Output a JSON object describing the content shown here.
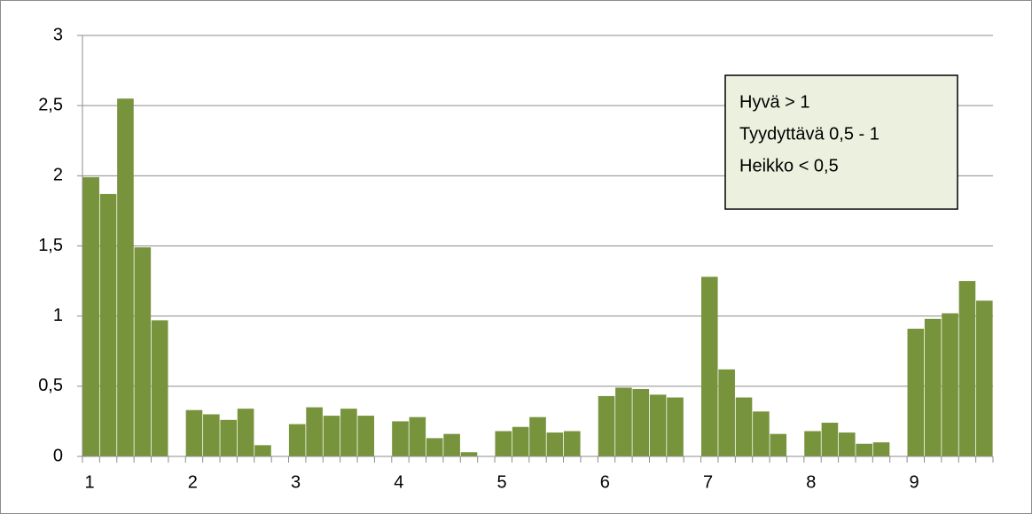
{
  "chart_data": {
    "type": "bar",
    "categories": [
      "1",
      null,
      null,
      null,
      null,
      null,
      "2",
      null,
      null,
      null,
      null,
      null,
      "3",
      null,
      null,
      null,
      null,
      null,
      "4",
      null,
      null,
      null,
      null,
      null,
      "5",
      null,
      null,
      null,
      null,
      null,
      "6",
      null,
      null,
      null,
      null,
      null,
      "7",
      null,
      null,
      null,
      null,
      null,
      "8",
      null,
      null,
      null,
      null,
      null,
      "9",
      null,
      null,
      null,
      null
    ],
    "values": [
      1.99,
      1.87,
      2.55,
      1.49,
      0.97,
      null,
      0.33,
      0.3,
      0.26,
      0.34,
      0.08,
      null,
      0.23,
      0.35,
      0.29,
      0.34,
      0.29,
      null,
      0.25,
      0.28,
      0.13,
      0.16,
      0.03,
      null,
      0.18,
      0.21,
      0.28,
      0.17,
      0.18,
      null,
      0.43,
      0.49,
      0.48,
      0.44,
      0.42,
      null,
      1.28,
      0.62,
      0.42,
      0.32,
      0.16,
      null,
      0.18,
      0.24,
      0.17,
      0.09,
      0.1,
      null,
      0.91,
      0.98,
      1.02,
      1.25,
      1.11
    ],
    "color": "#77933c",
    "ylim": [
      0,
      3
    ],
    "yticks": [
      0,
      {
        "value": 0.5,
        "label": "0,5"
      },
      1,
      {
        "value": 1.5,
        "label": "1,5"
      },
      2,
      {
        "value": 2.5,
        "label": "2,5"
      },
      3
    ],
    "grid": true,
    "annotations": [
      "Hyvä  > 1",
      "Tyydyttävä 0,5 - 1",
      "Heikko < 0,5"
    ]
  }
}
